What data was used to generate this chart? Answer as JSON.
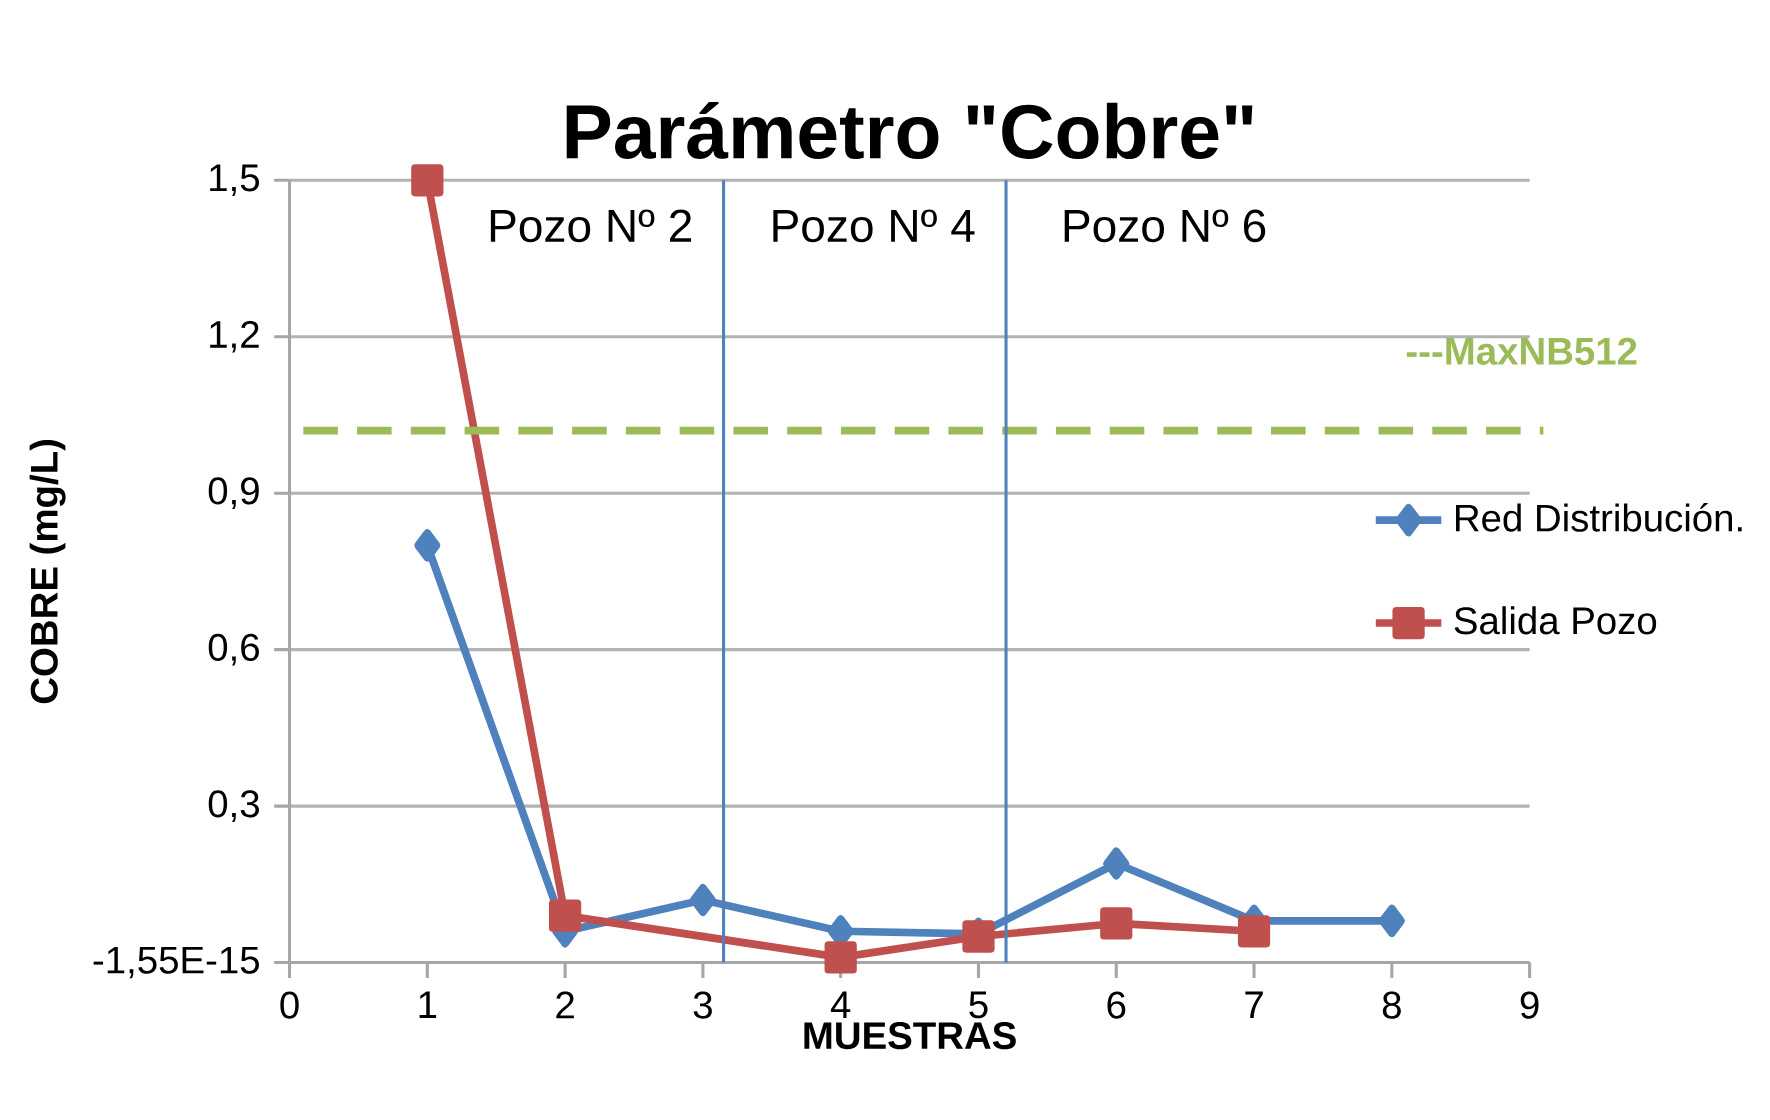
{
  "chart_data": {
    "type": "line",
    "title": "Parámetro \"Cobre\"",
    "xlabel": "MUESTRAS",
    "ylabel": "COBRE (mg/L)",
    "xlim": [
      0,
      9
    ],
    "xticks": [
      0,
      1,
      2,
      3,
      4,
      5,
      6,
      7,
      8,
      9
    ],
    "ylim": [
      -1.55e-15,
      1.5
    ],
    "yticks": [
      {
        "value": -1.55e-15,
        "label": "-1,55E-15"
      },
      {
        "value": 0.3,
        "label": "0,3"
      },
      {
        "value": 0.6,
        "label": "0,6"
      },
      {
        "value": 0.9,
        "label": "0,9"
      },
      {
        "value": 1.2,
        "label": "1,2"
      },
      {
        "value": 1.5,
        "label": "1,5"
      }
    ],
    "grid": "y",
    "legend": "right",
    "series": [
      {
        "name": "Red Distribución.",
        "color": "#4f81bd",
        "marker": "diamond",
        "x": [
          1,
          2,
          3,
          4,
          5,
          6,
          7,
          8
        ],
        "values": [
          0.8,
          0.06,
          0.12,
          0.06,
          0.055,
          0.19,
          0.08,
          0.08
        ]
      },
      {
        "name": "Salida Pozo",
        "color": "#c0504d",
        "marker": "square",
        "x": [
          1,
          2,
          4,
          5,
          6,
          7
        ],
        "values": [
          1.5,
          0.09,
          0.01,
          0.05,
          0.075,
          0.06
        ]
      }
    ],
    "ref_lines": [
      {
        "axis": "y",
        "value": 1.02,
        "label": "---MaxNB512",
        "color": "#9bbb59",
        "line_style": "dashed"
      },
      {
        "axis": "x",
        "value": 3.15,
        "color": "#4f81bd"
      },
      {
        "axis": "x",
        "value": 5.2,
        "color": "#4f81bd"
      }
    ],
    "annotations": [
      "Pozo Nº 2",
      "Pozo Nº 4",
      "Pozo Nº 6"
    ]
  }
}
